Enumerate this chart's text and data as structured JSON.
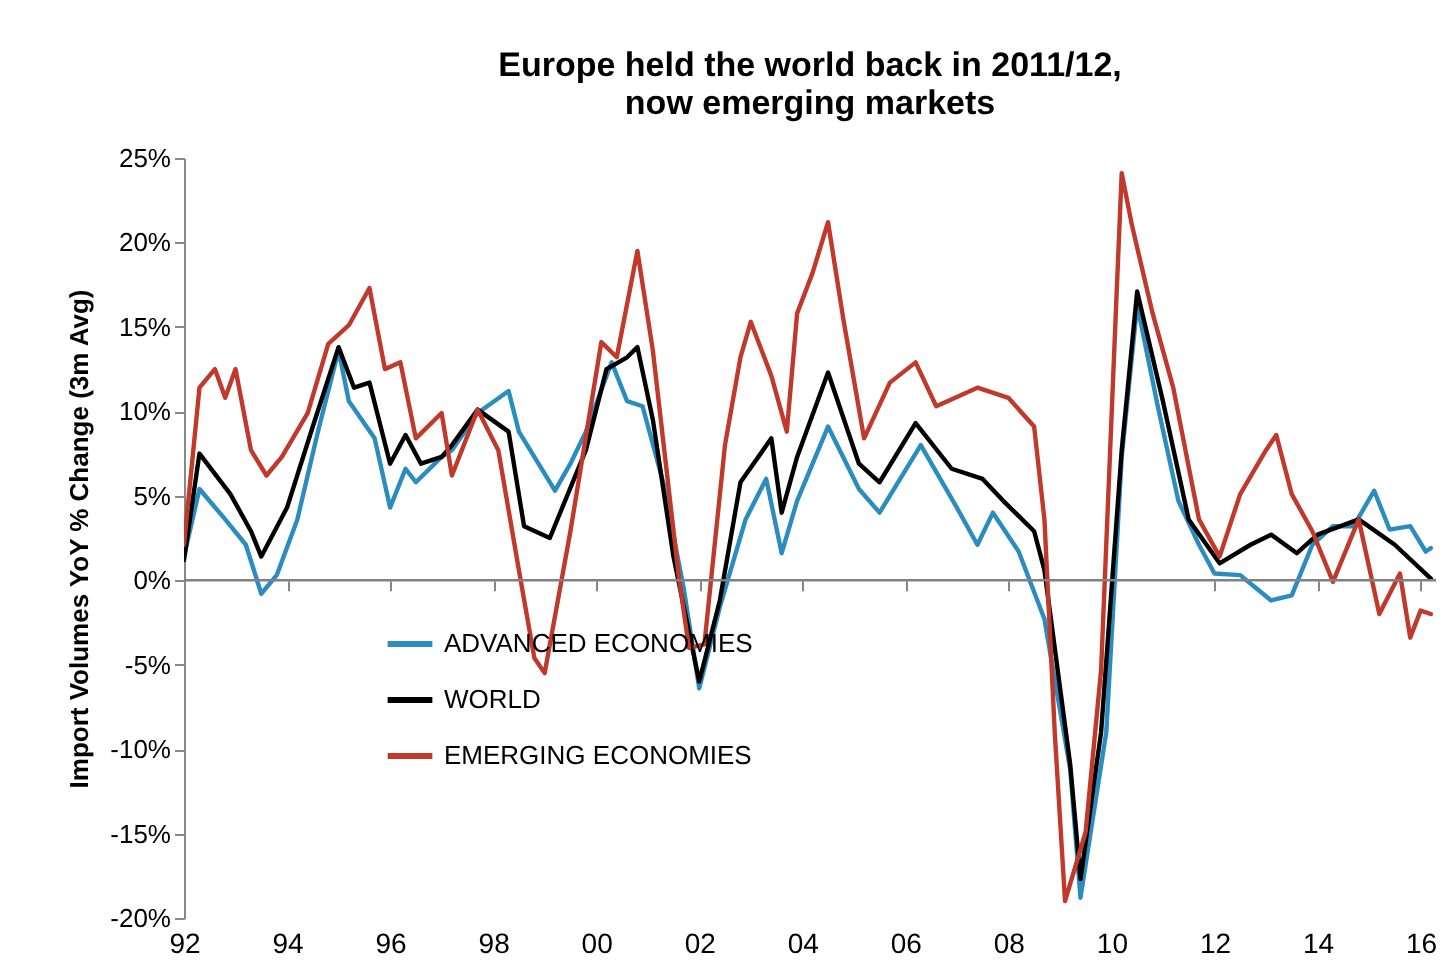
{
  "chart_data": {
    "type": "line",
    "title": "Europe held the world back in 2011/12, now emerging markets",
    "ylabel": "Import Volumes YoY % Change (3m Avg)",
    "xlim": [
      1992,
      2016.3
    ],
    "xticks": [
      {
        "value": 1992,
        "label": "92"
      },
      {
        "value": 1994,
        "label": "94"
      },
      {
        "value": 1996,
        "label": "96"
      },
      {
        "value": 1998,
        "label": "98"
      },
      {
        "value": 2000,
        "label": "00"
      },
      {
        "value": 2002,
        "label": "02"
      },
      {
        "value": 2004,
        "label": "04"
      },
      {
        "value": 2006,
        "label": "06"
      },
      {
        "value": 2008,
        "label": "08"
      },
      {
        "value": 2010,
        "label": "10"
      },
      {
        "value": 2012,
        "label": "12"
      },
      {
        "value": 2014,
        "label": "14"
      },
      {
        "value": 2016,
        "label": "16"
      }
    ],
    "ylim": [
      -20,
      25
    ],
    "yticks": [
      {
        "value": -20,
        "label": "-20%"
      },
      {
        "value": -15,
        "label": "-15%"
      },
      {
        "value": -10,
        "label": "-10%"
      },
      {
        "value": -5,
        "label": "-5%"
      },
      {
        "value": 0,
        "label": "0%"
      },
      {
        "value": 5,
        "label": "5%"
      },
      {
        "value": 10,
        "label": "10%"
      },
      {
        "value": 15,
        "label": "15%"
      },
      {
        "value": 20,
        "label": "20%"
      },
      {
        "value": 25,
        "label": "25%"
      }
    ],
    "ref_lines": [
      {
        "axis": "y",
        "value": 0,
        "color": "#808080"
      }
    ],
    "grid": false,
    "legend": "bottom left",
    "series": [
      {
        "name": "ADVANCED ECONOMIES",
        "color": "#2a8cbf",
        "x": [
          1992.0,
          1992.3,
          1992.8,
          1993.2,
          1993.5,
          1993.8,
          1994.2,
          1994.6,
          1995.0,
          1995.2,
          1995.7,
          1996.0,
          1996.3,
          1996.5,
          1997.0,
          1997.2,
          1997.7,
          1998.3,
          1998.5,
          1998.8,
          1999.2,
          1999.5,
          1999.8,
          2000.3,
          2000.6,
          2000.9,
          2001.3,
          2001.7,
          2002.0,
          2002.4,
          2002.9,
          2003.3,
          2003.6,
          2003.9,
          2004.5,
          2005.1,
          2005.5,
          2006.3,
          2007.0,
          2007.4,
          2007.7,
          2008.2,
          2008.7,
          2009.2,
          2009.4,
          2009.9,
          2010.2,
          2010.5,
          2010.9,
          2011.3,
          2011.7,
          2012.0,
          2012.5,
          2013.1,
          2013.5,
          2013.9,
          2014.3,
          2014.7,
          2015.1,
          2015.4,
          2015.8,
          2016.1,
          2016.2
        ],
        "values": [
          1.4,
          5.4,
          3.6,
          2.1,
          -0.8,
          0.3,
          3.6,
          8.8,
          13.6,
          10.6,
          8.4,
          4.3,
          6.6,
          5.8,
          7.3,
          7.7,
          9.9,
          11.2,
          8.8,
          7.3,
          5.3,
          6.9,
          8.8,
          12.9,
          10.6,
          10.3,
          5.8,
          -0.5,
          -6.4,
          -1.6,
          3.6,
          6.0,
          1.6,
          4.7,
          9.1,
          5.4,
          4.0,
          8.0,
          4.3,
          2.1,
          4.0,
          1.7,
          -2.3,
          -11.2,
          -18.8,
          -9.0,
          7.3,
          16.3,
          10.3,
          4.7,
          2.1,
          0.4,
          0.3,
          -1.2,
          -0.9,
          2.1,
          3.2,
          3.2,
          5.3,
          3.0,
          3.2,
          1.7,
          1.9
        ]
      },
      {
        "name": "WORLD",
        "color": "#000000",
        "x": [
          1992.0,
          1992.3,
          1992.9,
          1993.3,
          1993.5,
          1994.0,
          1994.5,
          1995.0,
          1995.3,
          1995.6,
          1996.0,
          1996.3,
          1996.6,
          1997.0,
          1997.2,
          1997.7,
          1998.3,
          1998.6,
          1999.1,
          1999.8,
          2000.2,
          2000.6,
          2000.8,
          2001.1,
          2001.5,
          2002.0,
          2002.4,
          2002.8,
          2003.4,
          2003.6,
          2003.9,
          2004.5,
          2005.1,
          2005.5,
          2006.2,
          2006.9,
          2007.5,
          2007.9,
          2008.5,
          2008.7,
          2009.2,
          2009.4,
          2009.8,
          2010.2,
          2010.5,
          2011.0,
          2011.5,
          2012.1,
          2012.7,
          2013.1,
          2013.6,
          2014.0,
          2014.8,
          2015.5,
          2016.2
        ],
        "values": [
          1.2,
          7.5,
          5.1,
          2.9,
          1.4,
          4.3,
          9.1,
          13.8,
          11.4,
          11.7,
          6.9,
          8.6,
          6.9,
          7.3,
          8.0,
          10.1,
          8.8,
          3.2,
          2.5,
          7.7,
          12.5,
          13.2,
          13.8,
          9.5,
          1.4,
          -6.0,
          -1.2,
          5.8,
          8.4,
          4.0,
          7.3,
          12.3,
          6.9,
          5.8,
          9.3,
          6.6,
          6.0,
          4.7,
          2.9,
          0.6,
          -10.9,
          -17.7,
          -9.0,
          7.7,
          17.1,
          10.6,
          3.6,
          1.0,
          2.1,
          2.7,
          1.6,
          2.7,
          3.6,
          2.1,
          0.1
        ]
      },
      {
        "name": "EMERGING ECONOMIES",
        "color": "#c0392b",
        "x": [
          1992.0,
          1992.3,
          1992.6,
          1992.8,
          1993.0,
          1993.3,
          1993.6,
          1993.9,
          1994.4,
          1994.8,
          1995.2,
          1995.6,
          1995.9,
          1996.2,
          1996.5,
          1997.0,
          1997.2,
          1997.7,
          1998.1,
          1998.5,
          1998.8,
          1999.0,
          1999.5,
          2000.1,
          2000.4,
          2000.8,
          2001.1,
          2001.6,
          2001.8,
          2002.1,
          2002.5,
          2002.8,
          2003.0,
          2003.4,
          2003.7,
          2003.9,
          2004.2,
          2004.5,
          2004.8,
          2005.2,
          2005.7,
          2006.2,
          2006.6,
          2007.4,
          2008.0,
          2008.5,
          2008.7,
          2008.9,
          2009.1,
          2009.5,
          2009.8,
          2010.1,
          2010.2,
          2010.4,
          2010.8,
          2011.2,
          2011.7,
          2012.1,
          2012.5,
          2013.0,
          2013.2,
          2013.5,
          2013.9,
          2014.3,
          2014.8,
          2015.2,
          2015.6,
          2015.8,
          2016.0,
          2016.2
        ],
        "values": [
          2.1,
          11.4,
          12.5,
          10.8,
          12.5,
          7.7,
          6.2,
          7.3,
          9.9,
          14.0,
          15.1,
          17.3,
          12.5,
          12.9,
          8.4,
          9.9,
          6.2,
          10.1,
          7.7,
          0.6,
          -4.6,
          -5.5,
          2.9,
          14.1,
          13.2,
          19.5,
          13.6,
          0.3,
          -4.0,
          -3.8,
          8.0,
          13.2,
          15.3,
          12.1,
          8.8,
          15.8,
          18.2,
          21.2,
          15.4,
          8.4,
          11.7,
          12.9,
          10.3,
          11.4,
          10.8,
          9.1,
          3.6,
          -9.0,
          -19.0,
          -14.9,
          -5.3,
          16.9,
          24.1,
          21.0,
          15.8,
          11.4,
          3.6,
          1.4,
          5.1,
          7.7,
          8.6,
          5.1,
          2.9,
          -0.1,
          3.6,
          -2.0,
          0.4,
          -3.4,
          -1.8,
          -2.0
        ]
      }
    ]
  }
}
